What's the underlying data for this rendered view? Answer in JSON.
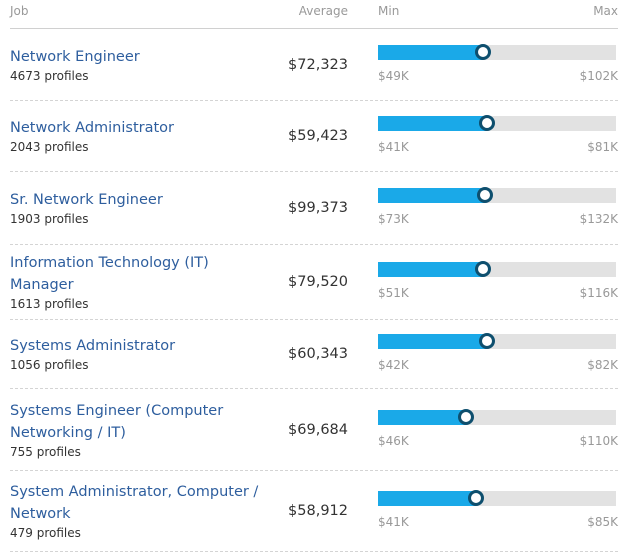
{
  "header": {
    "job": "Job",
    "average": "Average",
    "min": "Min",
    "max": "Max"
  },
  "rows": [
    {
      "title": "Network Engineer",
      "profiles": "4673 profiles",
      "average": "$72,323",
      "min": "$49K",
      "max": "$102K",
      "position": 0.44
    },
    {
      "title": "Network Administrator",
      "profiles": "2043 profiles",
      "average": "$59,423",
      "min": "$41K",
      "max": "$81K",
      "position": 0.46
    },
    {
      "title": "Sr. Network Engineer",
      "profiles": "1903 profiles",
      "average": "$99,373",
      "min": "$73K",
      "max": "$132K",
      "position": 0.45
    },
    {
      "title": "Information Technology (IT) Manager",
      "profiles": "1613 profiles",
      "average": "$79,520",
      "min": "$51K",
      "max": "$116K",
      "position": 0.44
    },
    {
      "title": "Systems Administrator",
      "profiles": "1056 profiles",
      "average": "$60,343",
      "min": "$42K",
      "max": "$82K",
      "position": 0.46
    },
    {
      "title": "Systems Engineer (Computer Networking / IT)",
      "profiles": "755 profiles",
      "average": "$69,684",
      "min": "$46K",
      "max": "$110K",
      "position": 0.37
    },
    {
      "title": "System Administrator, Computer / Network",
      "profiles": "479 profiles",
      "average": "$58,912",
      "min": "$41K",
      "max": "$85K",
      "position": 0.41
    }
  ],
  "colors": {
    "fill": "#1aa9e8",
    "track": "#e2e2e2",
    "link": "#2e5e9e"
  }
}
